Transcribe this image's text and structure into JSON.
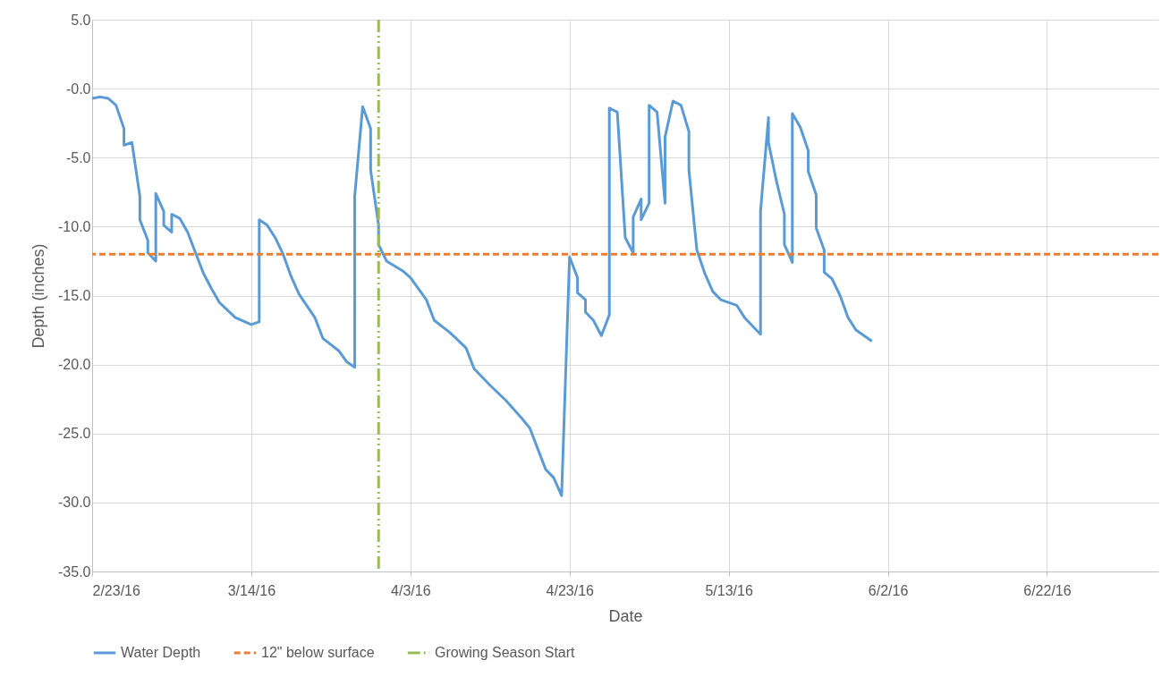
{
  "chart_data": {
    "type": "line",
    "xlabel": "Date",
    "ylabel": "Depth (inches)",
    "x": [
      "2016-02-23",
      "2016-02-24",
      "2016-02-25",
      "2016-02-26",
      "2016-02-27",
      "2016-02-27",
      "2016-02-28",
      "2016-02-29",
      "2016-02-29",
      "2016-03-01",
      "2016-03-01",
      "2016-03-02",
      "2016-03-02",
      "2016-03-03",
      "2016-03-03",
      "2016-03-04",
      "2016-03-04",
      "2016-03-05",
      "2016-03-06",
      "2016-03-07",
      "2016-03-08",
      "2016-03-09",
      "2016-03-10",
      "2016-03-12",
      "2016-03-14",
      "2016-03-15",
      "2016-03-15",
      "2016-03-16",
      "2016-03-17",
      "2016-03-18",
      "2016-03-19",
      "2016-03-20",
      "2016-03-22",
      "2016-03-23",
      "2016-03-25",
      "2016-03-26",
      "2016-03-27",
      "2016-03-27",
      "2016-03-28",
      "2016-03-29",
      "2016-03-29",
      "2016-03-30",
      "2016-03-30",
      "2016-03-31",
      "2016-04-02",
      "2016-04-03",
      "2016-04-05",
      "2016-04-06",
      "2016-04-08",
      "2016-04-10",
      "2016-04-11",
      "2016-04-13",
      "2016-04-15",
      "2016-04-17",
      "2016-04-18",
      "2016-04-19",
      "2016-04-20",
      "2016-04-21",
      "2016-04-22",
      "2016-04-23",
      "2016-04-24",
      "2016-04-24",
      "2016-04-25",
      "2016-04-25",
      "2016-04-26",
      "2016-04-27",
      "2016-04-28",
      "2016-04-28",
      "2016-04-29",
      "2016-04-30",
      "2016-05-01",
      "2016-05-01",
      "2016-05-02",
      "2016-05-02",
      "2016-05-03",
      "2016-05-03",
      "2016-05-04",
      "2016-05-05",
      "2016-05-05",
      "2016-05-06",
      "2016-05-07",
      "2016-05-08",
      "2016-05-08",
      "2016-05-09",
      "2016-05-10",
      "2016-05-11",
      "2016-05-12",
      "2016-05-14",
      "2016-05-15",
      "2016-05-17",
      "2016-05-17",
      "2016-05-18",
      "2016-05-18",
      "2016-05-19",
      "2016-05-20",
      "2016-05-20",
      "2016-05-21",
      "2016-05-21",
      "2016-05-22",
      "2016-05-23",
      "2016-05-23",
      "2016-05-24",
      "2016-05-24",
      "2016-05-25",
      "2016-05-25",
      "2016-05-26",
      "2016-05-27",
      "2016-05-28",
      "2016-05-29",
      "2016-05-31"
    ],
    "series": [
      {
        "name": "Water Depth",
        "color": "#5b9bd5",
        "values": [
          -0.7,
          -0.6,
          -0.7,
          -1.2,
          -2.9,
          -4.1,
          -3.9,
          -7.8,
          -9.5,
          -11.0,
          -11.9,
          -12.5,
          -7.6,
          -8.9,
          -9.9,
          -10.4,
          -9.1,
          -9.4,
          -10.4,
          -11.9,
          -13.4,
          -14.5,
          -15.5,
          -16.6,
          -17.1,
          -16.9,
          -9.5,
          -9.9,
          -10.8,
          -12.0,
          -13.6,
          -14.9,
          -16.6,
          -18.1,
          -19.0,
          -19.8,
          -20.2,
          -7.8,
          -1.3,
          -2.9,
          -5.9,
          -9.9,
          -11.3,
          -12.5,
          -13.2,
          -13.7,
          -15.3,
          -16.8,
          -17.7,
          -18.8,
          -20.3,
          -21.5,
          -22.6,
          -23.9,
          -24.6,
          -26.1,
          -27.6,
          -28.2,
          -29.5,
          -12.2,
          -13.7,
          -14.8,
          -15.3,
          -16.2,
          -16.8,
          -17.9,
          -16.4,
          -1.4,
          -1.7,
          -10.8,
          -11.9,
          -9.3,
          -8.0,
          -9.5,
          -8.3,
          -1.2,
          -1.7,
          -8.3,
          -3.5,
          -0.9,
          -1.2,
          -3.1,
          -5.9,
          -11.7,
          -13.4,
          -14.7,
          -15.3,
          -15.7,
          -16.6,
          -17.8,
          -8.9,
          -2.1,
          -3.9,
          -6.7,
          -9.1,
          -11.3,
          -12.6,
          -1.8,
          -2.8,
          -4.5,
          -6.0,
          -7.7,
          -10.1,
          -11.7,
          -13.3,
          -13.8,
          -15.0,
          -16.6,
          -17.5,
          -18.3
        ]
      }
    ],
    "ref_lines": [
      {
        "axis": "y",
        "value": -12,
        "label": "12\" below surface",
        "color": "#ed7d31",
        "line_style": "dashed"
      },
      {
        "axis": "x",
        "value": "2016-03-30",
        "label": "Growing Season Start",
        "color": "#9bbb59",
        "line_style": "dashed"
      }
    ],
    "xlim": [
      "2016-02-23",
      "2016-07-06"
    ],
    "xticks": [
      {
        "value": "2016-02-23",
        "label": "2/23/16"
      },
      {
        "value": "2016-03-14",
        "label": "3/14/16"
      },
      {
        "value": "2016-04-03",
        "label": "4/3/16"
      },
      {
        "value": "2016-04-23",
        "label": "4/23/16"
      },
      {
        "value": "2016-05-13",
        "label": "5/13/16"
      },
      {
        "value": "2016-06-02",
        "label": "6/2/16"
      },
      {
        "value": "2016-06-22",
        "label": "6/22/16"
      }
    ],
    "ylim": [
      -35,
      5
    ],
    "yticks": [
      {
        "value": -35,
        "label": "-35.0"
      },
      {
        "value": -30,
        "label": "-30.0"
      },
      {
        "value": -25,
        "label": "-25.0"
      },
      {
        "value": -20,
        "label": "-20.0"
      },
      {
        "value": -15,
        "label": "-15.0"
      },
      {
        "value": -10,
        "label": "-10.0"
      },
      {
        "value": -5,
        "label": "-5.0"
      },
      {
        "value": 0,
        "label": "-0.0"
      },
      {
        "value": 5,
        "label": "5.0"
      }
    ],
    "grid": true,
    "legend": "bottom",
    "marker": "none",
    "line_style": "solid"
  }
}
